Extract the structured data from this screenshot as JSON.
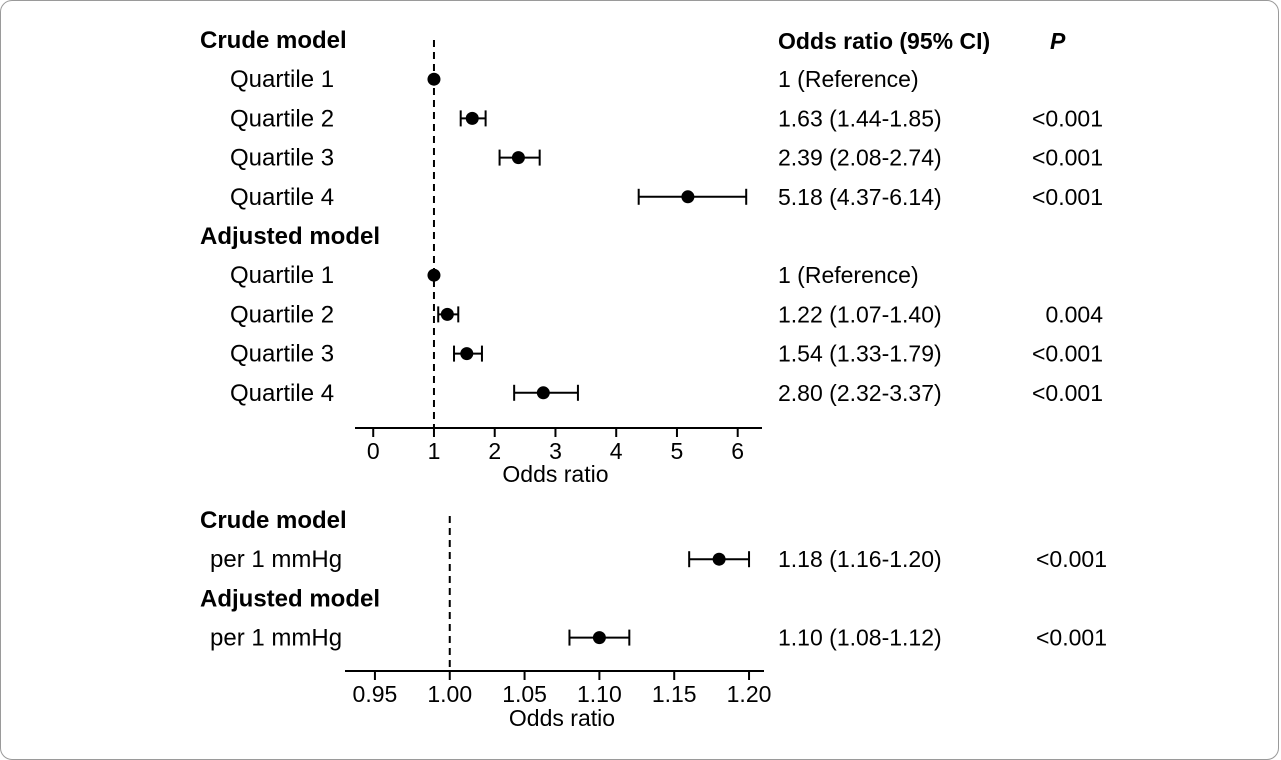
{
  "header": {
    "or_column": "Odds ratio (95% CI)",
    "p_column": "P"
  },
  "chart_data": [
    {
      "type": "forest",
      "xlabel": "Odds ratio",
      "xlim": [
        -0.3,
        6.4
      ],
      "reference_line": 1,
      "ticks": [
        "0",
        "1",
        "2",
        "3",
        "4",
        "5",
        "6"
      ],
      "groups": [
        {
          "name": "Crude model",
          "rows": [
            {
              "label": "Quartile 1",
              "or": 1.0,
              "lo": 1.0,
              "hi": 1.0,
              "or_text": "1 (Reference)",
              "p": ""
            },
            {
              "label": "Quartile 2",
              "or": 1.63,
              "lo": 1.44,
              "hi": 1.85,
              "or_text": "1.63 (1.44-1.85)",
              "p": "<0.001"
            },
            {
              "label": "Quartile 3",
              "or": 2.39,
              "lo": 2.08,
              "hi": 2.74,
              "or_text": "2.39 (2.08-2.74)",
              "p": "<0.001"
            },
            {
              "label": "Quartile 4",
              "or": 5.18,
              "lo": 4.37,
              "hi": 6.14,
              "or_text": "5.18 (4.37-6.14)",
              "p": "<0.001"
            }
          ]
        },
        {
          "name": "Adjusted model",
          "rows": [
            {
              "label": "Quartile 1",
              "or": 1.0,
              "lo": 1.0,
              "hi": 1.0,
              "or_text": "1 (Reference)",
              "p": ""
            },
            {
              "label": "Quartile 2",
              "or": 1.22,
              "lo": 1.07,
              "hi": 1.4,
              "or_text": "1.22 (1.07-1.40)",
              "p": "0.004"
            },
            {
              "label": "Quartile 3",
              "or": 1.54,
              "lo": 1.33,
              "hi": 1.79,
              "or_text": "1.54 (1.33-1.79)",
              "p": "<0.001"
            },
            {
              "label": "Quartile 4",
              "or": 2.8,
              "lo": 2.32,
              "hi": 3.37,
              "or_text": "2.80 (2.32-3.37)",
              "p": "<0.001"
            }
          ]
        }
      ]
    },
    {
      "type": "forest",
      "xlabel": "Odds ratio",
      "xlim": [
        0.93,
        1.21
      ],
      "reference_line": 1.0,
      "ticks": [
        "0.95",
        "1.00",
        "1.05",
        "1.10",
        "1.15",
        "1.20"
      ],
      "groups": [
        {
          "name": "Crude model",
          "rows": [
            {
              "label": "per 1 mmHg",
              "or": 1.18,
              "lo": 1.16,
              "hi": 1.2,
              "or_text": "1.18 (1.16-1.20)",
              "p": "<0.001"
            }
          ]
        },
        {
          "name": "Adjusted model",
          "rows": [
            {
              "label": "per 1 mmHg",
              "or": 1.1,
              "lo": 1.08,
              "hi": 1.12,
              "or_text": "1.10 (1.08-1.12)",
              "p": "<0.001"
            }
          ]
        }
      ]
    }
  ]
}
